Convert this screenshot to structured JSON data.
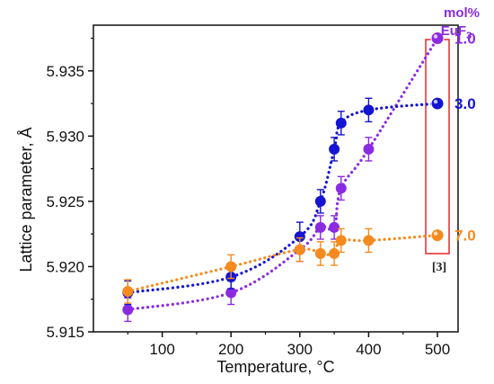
{
  "chart_data": {
    "type": "scatter",
    "xlabel": "Temperature, °C",
    "ylabel": "Lattice parameter, Å",
    "xlim": [
      0,
      530
    ],
    "ylim": [
      5.915,
      5.9385
    ],
    "xticks": [
      100,
      200,
      300,
      400,
      500
    ],
    "yticks": [
      5.915,
      5.92,
      5.925,
      5.93,
      5.935
    ],
    "xtick_labels": [
      "100",
      "200",
      "300",
      "400",
      "500"
    ],
    "ytick_labels": [
      "5.915",
      "5.920",
      "5.925",
      "5.930",
      "5.935"
    ],
    "legend_title": "mol%",
    "legend_subtitle": "EuF",
    "legend_subscript": "3",
    "reference_label": "[3]",
    "reference_box_x": 500,
    "grid": false,
    "series": [
      {
        "name": "1.0",
        "color": "#8a2be2",
        "points": [
          [
            50,
            5.9167
          ],
          [
            200,
            5.918
          ],
          [
            300,
            5.9213
          ],
          [
            330,
            5.923
          ],
          [
            350,
            5.923
          ],
          [
            360,
            5.926
          ],
          [
            400,
            5.929
          ],
          [
            500,
            5.9375
          ]
        ],
        "errors": [
          0.0009,
          0.0009,
          0.0009,
          0.0009,
          0.0009,
          0.0009,
          0.0009,
          0.0
        ]
      },
      {
        "name": "3.0",
        "color": "#1414d2",
        "points": [
          [
            50,
            5.918
          ],
          [
            200,
            5.9192
          ],
          [
            300,
            5.9223
          ],
          [
            330,
            5.925
          ],
          [
            350,
            5.929
          ],
          [
            360,
            5.931
          ],
          [
            400,
            5.932
          ],
          [
            500,
            5.9325
          ]
        ],
        "errors": [
          0.0009,
          0.0009,
          0.0011,
          0.0009,
          0.0009,
          0.0009,
          0.0009,
          0.0
        ]
      },
      {
        "name": "7.0",
        "color": "#f58a1f",
        "points": [
          [
            50,
            5.9181
          ],
          [
            200,
            5.92
          ],
          [
            300,
            5.9213
          ],
          [
            330,
            5.921
          ],
          [
            350,
            5.921
          ],
          [
            360,
            5.922
          ],
          [
            400,
            5.922
          ],
          [
            500,
            5.9224
          ]
        ],
        "errors": [
          0.0009,
          0.0009,
          0.0009,
          0.0009,
          0.0009,
          0.0009,
          0.0009,
          0.0
        ]
      }
    ]
  }
}
